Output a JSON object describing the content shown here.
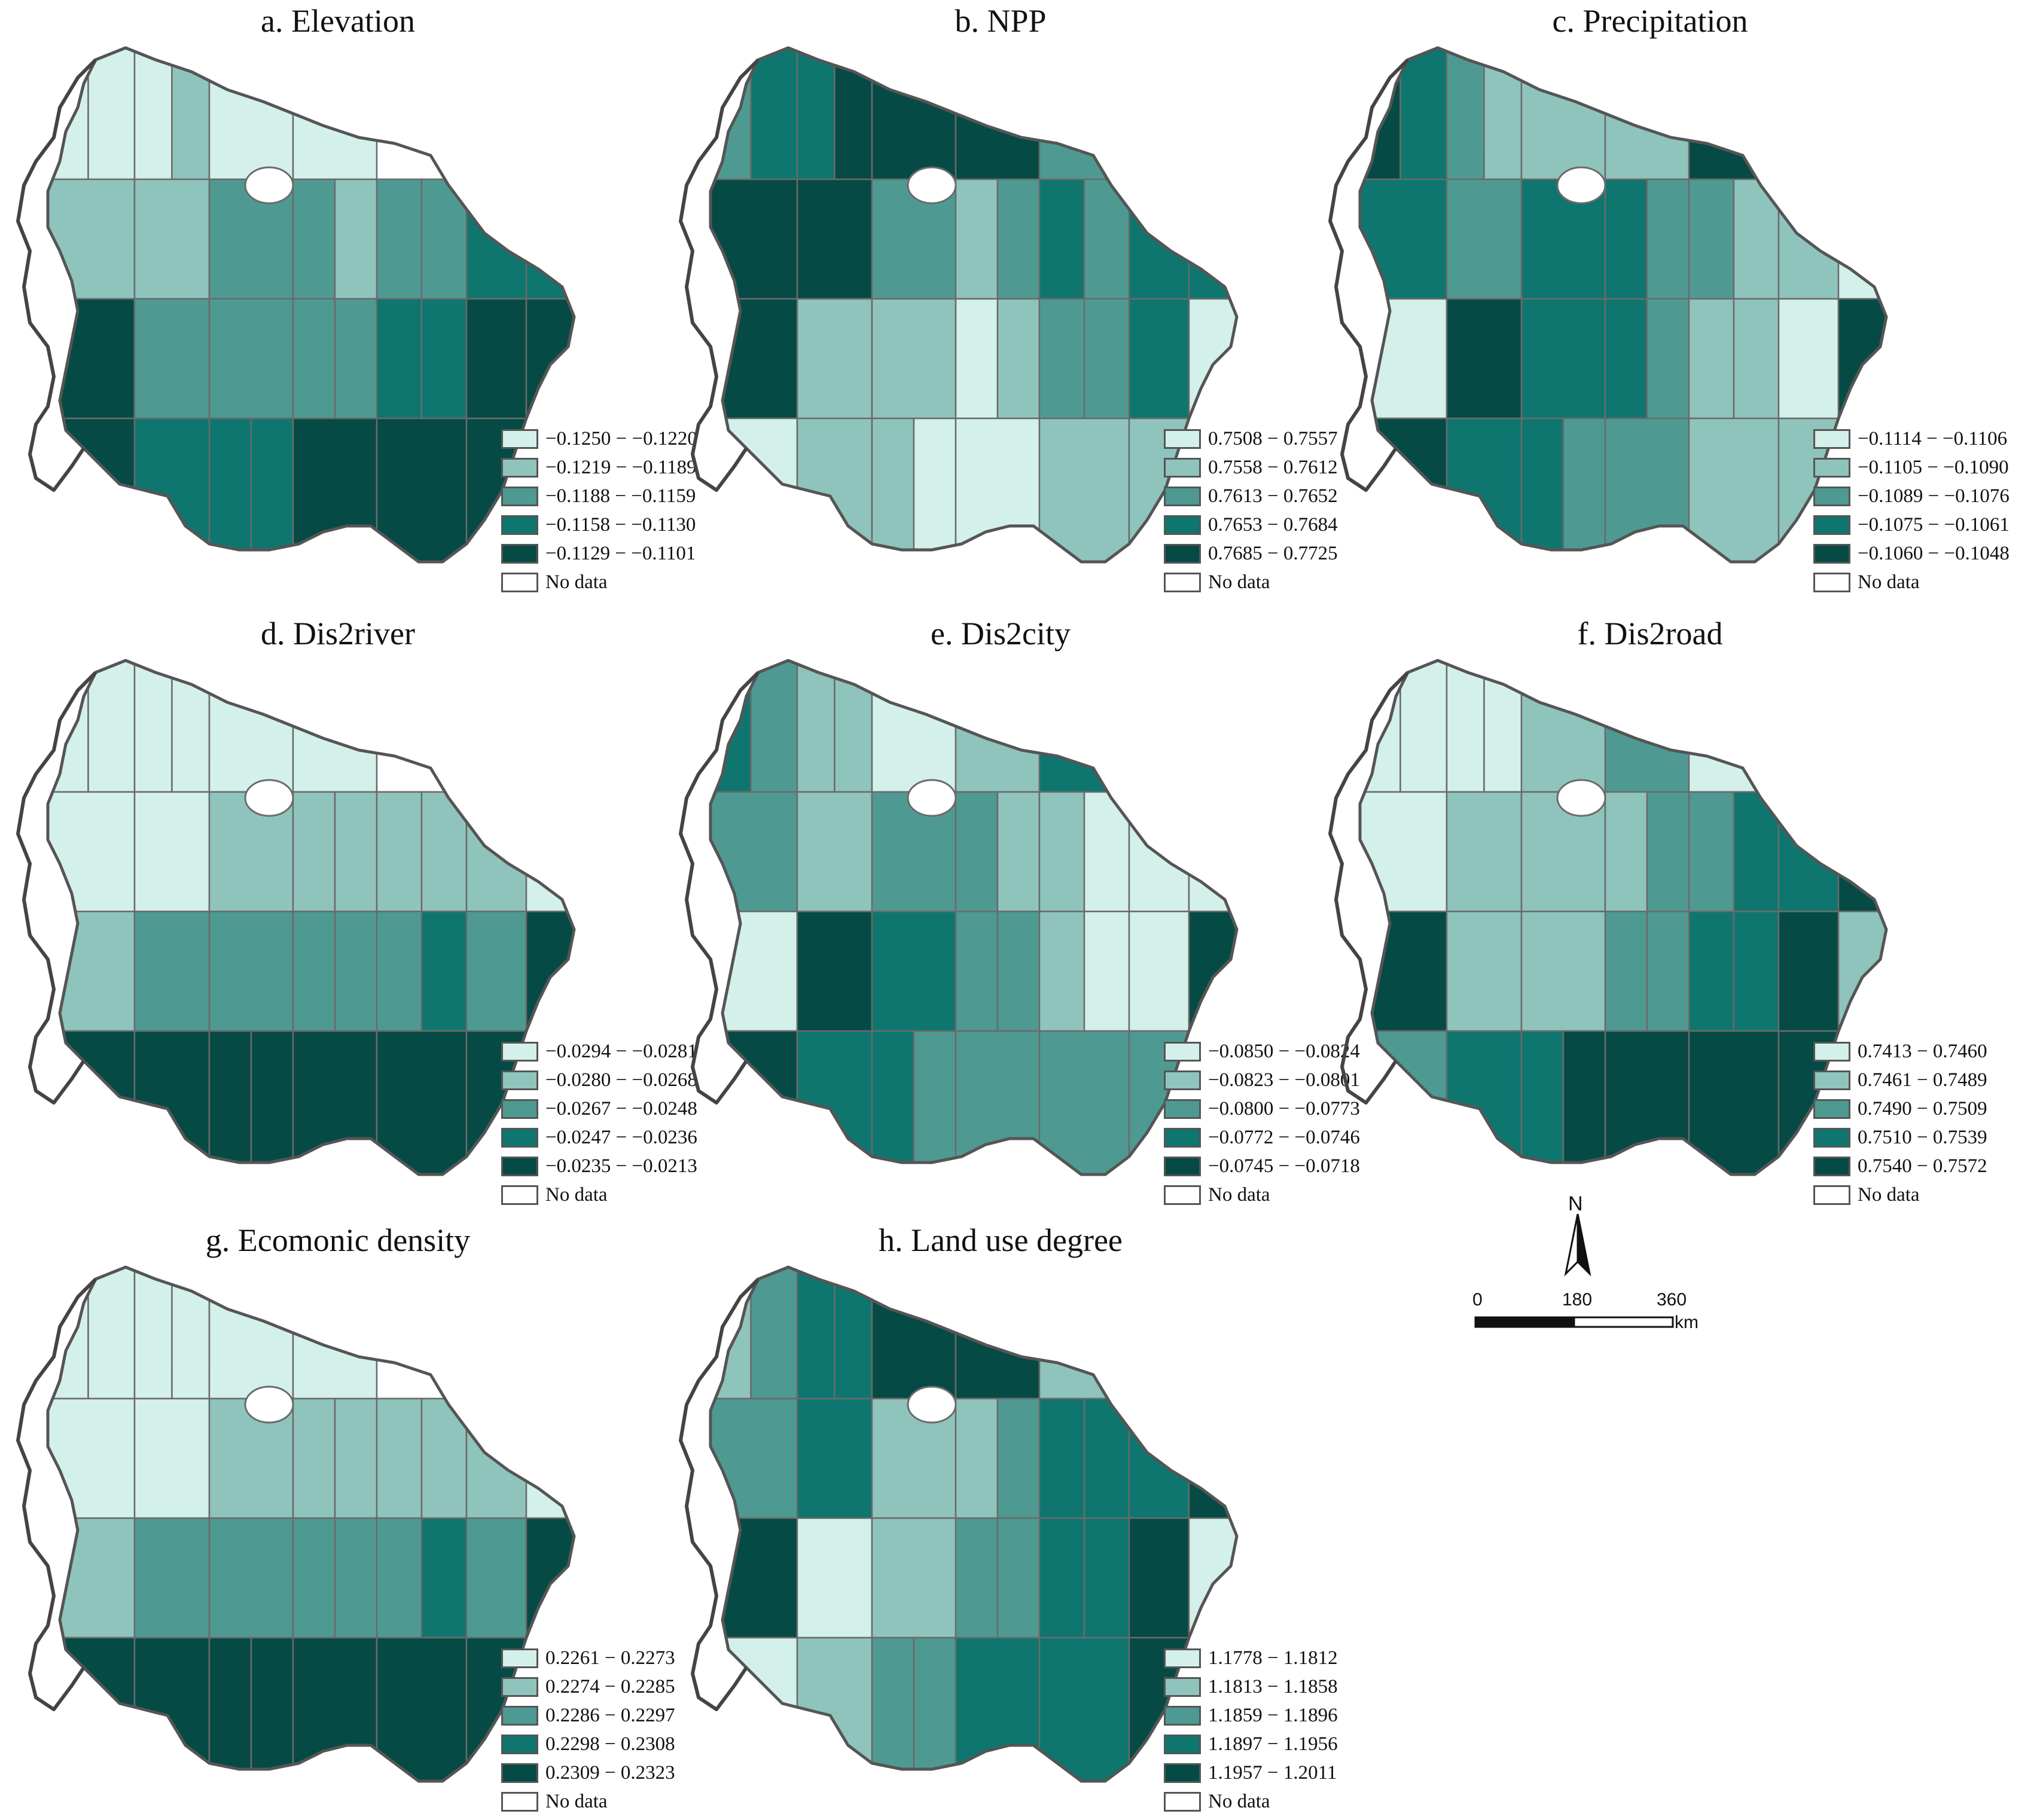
{
  "colors": {
    "class1": "#d4f0eb",
    "class2": "#8fc4bd",
    "class3": "#4e9a93",
    "class4": "#0e766f",
    "class5": "#054a45",
    "nodata": "#ffffff"
  },
  "panels": [
    {
      "title": "a. Elevation",
      "legend": [
        "−0.1250 − −0.1220",
        "−0.1219 − −0.1189",
        "−0.1188 − −0.1159",
        "−0.1158 − −0.1130",
        "−0.1129 − −0.1101",
        "No data"
      ],
      "classes": [
        1,
        1,
        1,
        2,
        1,
        1,
        0,
        0,
        2,
        2,
        3,
        3,
        2,
        3,
        3,
        4,
        4,
        5,
        3,
        3,
        3,
        3,
        4,
        4,
        5,
        5,
        5,
        4,
        4,
        4,
        5,
        5,
        5
      ]
    },
    {
      "title": "b. NPP",
      "legend": [
        "0.7508 − 0.7557",
        "0.7558 − 0.7612",
        "0.7613 − 0.7652",
        "0.7653 − 0.7684",
        "0.7685 − 0.7725",
        "No data"
      ],
      "classes": [
        3,
        4,
        4,
        5,
        5,
        5,
        3,
        4,
        5,
        5,
        3,
        2,
        3,
        4,
        3,
        4,
        4,
        5,
        2,
        2,
        1,
        2,
        3,
        3,
        4,
        1,
        1,
        2,
        2,
        1,
        1,
        2,
        2
      ]
    },
    {
      "title": "c. Precipitation",
      "legend": [
        "−0.1114 − −0.1106",
        "−0.1105 − −0.1090",
        "−0.1089 − −0.1076",
        "−0.1075 − −0.1061",
        "−0.1060 − −0.1048",
        "No data"
      ],
      "classes": [
        5,
        4,
        3,
        2,
        2,
        2,
        5,
        5,
        4,
        3,
        4,
        4,
        3,
        3,
        2,
        2,
        1,
        1,
        5,
        4,
        4,
        3,
        2,
        2,
        1,
        5,
        5,
        4,
        4,
        3,
        3,
        2,
        2
      ]
    },
    {
      "title": "d. Dis2river",
      "legend": [
        "−0.0294 − −0.0281",
        "−0.0280 − −0.0268",
        "−0.0267 − −0.0248",
        "−0.0247 − −0.0236",
        "−0.0235 − −0.0213",
        "No data"
      ],
      "classes": [
        1,
        1,
        1,
        1,
        1,
        1,
        0,
        2,
        1,
        1,
        2,
        2,
        2,
        2,
        2,
        2,
        1,
        2,
        3,
        3,
        3,
        3,
        3,
        4,
        3,
        5,
        5,
        5,
        5,
        5,
        5,
        5,
        5
      ]
    },
    {
      "title": "e. Dis2city",
      "legend": [
        "−0.0850 − −0.0824",
        "−0.0823 − −0.0801",
        "−0.0800 − −0.0773",
        "−0.0772 − −0.0746",
        "−0.0745 − −0.0718",
        "No data"
      ],
      "classes": [
        4,
        3,
        2,
        2,
        1,
        2,
        4,
        4,
        3,
        2,
        3,
        3,
        2,
        2,
        1,
        1,
        1,
        1,
        5,
        4,
        3,
        3,
        2,
        1,
        1,
        5,
        5,
        4,
        4,
        3,
        3,
        3,
        3
      ]
    },
    {
      "title": "f. Dis2road",
      "legend": [
        "0.7413 − 0.7460",
        "0.7461 − 0.7489",
        "0.7490 − 0.7509",
        "0.7510 − 0.7539",
        "0.7540 − 0.7572",
        "No data"
      ],
      "classes": [
        1,
        1,
        1,
        1,
        2,
        3,
        1,
        1,
        1,
        2,
        2,
        2,
        3,
        3,
        4,
        4,
        5,
        5,
        2,
        2,
        3,
        3,
        4,
        4,
        5,
        2,
        3,
        4,
        4,
        5,
        5,
        5,
        5
      ]
    },
    {
      "title": "g. Ecomonic density",
      "legend": [
        "0.2261 − 0.2273",
        "0.2274 − 0.2285",
        "0.2286 − 0.2297",
        "0.2298 − 0.2308",
        "0.2309 − 0.2323",
        "No data"
      ],
      "classes": [
        1,
        1,
        1,
        1,
        1,
        1,
        0,
        2,
        1,
        1,
        2,
        2,
        2,
        2,
        2,
        2,
        1,
        2,
        3,
        3,
        3,
        3,
        3,
        4,
        3,
        5,
        5,
        5,
        5,
        5,
        5,
        5,
        5
      ]
    },
    {
      "title": "h. Land use degree",
      "legend": [
        "1.1778 − 1.1812",
        "1.1813 − 1.1858",
        "1.1859 − 1.1896",
        "1.1897 − 1.1956",
        "1.1957 − 1.2011",
        "No data"
      ],
      "classes": [
        2,
        3,
        4,
        4,
        5,
        5,
        2,
        3,
        3,
        4,
        2,
        2,
        3,
        4,
        4,
        4,
        5,
        5,
        1,
        2,
        3,
        3,
        4,
        4,
        5,
        1,
        1,
        2,
        3,
        3,
        4,
        4,
        5
      ]
    }
  ],
  "compass": {
    "north_label": "N"
  },
  "scalebar": {
    "ticks": [
      "0",
      "180",
      "360"
    ],
    "unit": "km"
  }
}
